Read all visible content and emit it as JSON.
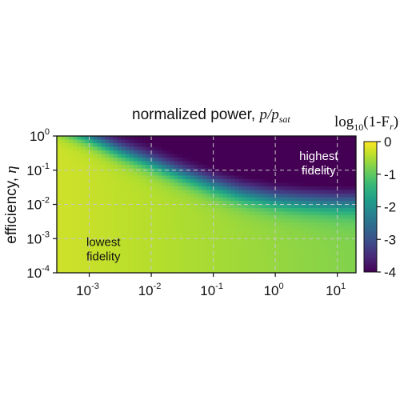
{
  "chart_data": {
    "type": "heatmap",
    "title": {
      "text": "normalized power, ",
      "math": "p/p",
      "math_subscript": "sat"
    },
    "ylabel": {
      "text": "efficiency, ",
      "math": "η"
    },
    "x_scale": "log",
    "y_scale": "log",
    "xlim": [
      0.0003,
      20
    ],
    "ylim": [
      0.0001,
      1
    ],
    "x_ticks": [
      {
        "value": 0.001,
        "base": "10",
        "exp": "-3"
      },
      {
        "value": 0.01,
        "base": "10",
        "exp": "-2"
      },
      {
        "value": 0.1,
        "base": "10",
        "exp": "-1"
      },
      {
        "value": 1,
        "base": "10",
        "exp": "0"
      },
      {
        "value": 10,
        "base": "10",
        "exp": "1"
      }
    ],
    "y_ticks": [
      {
        "value": 0.0001,
        "base": "10",
        "exp": "-4"
      },
      {
        "value": 0.001,
        "base": "10",
        "exp": "-3"
      },
      {
        "value": 0.01,
        "base": "10",
        "exp": "-2"
      },
      {
        "value": 0.1,
        "base": "10",
        "exp": "-1"
      },
      {
        "value": 1,
        "base": "10",
        "exp": "0"
      }
    ],
    "grid": true,
    "colormap": "viridis",
    "colorbar": {
      "label_prefix": "log",
      "label_sub": "10",
      "label_rest": "(1-F",
      "label_sub2": "r",
      "label_end": ")",
      "range": [
        -4,
        0
      ],
      "ticks": [
        {
          "value": 0,
          "label": "0"
        },
        {
          "value": -1,
          "label": "-1"
        },
        {
          "value": -2,
          "label": "-2"
        },
        {
          "value": -3,
          "label": "-3"
        },
        {
          "value": -4,
          "label": "-4"
        }
      ],
      "placement": "right"
    },
    "boundary_curve": {
      "description_x": [
        0.0003,
        0.001,
        0.003,
        0.01,
        0.03,
        0.1,
        0.3,
        1,
        3,
        10,
        20
      ],
      "y": [
        2.0,
        0.85,
        0.35,
        0.16,
        0.075,
        0.035,
        0.02,
        0.014,
        0.012,
        0.011,
        0.011
      ]
    },
    "annotations": [
      {
        "id": "high",
        "lines": [
          "highest",
          "fidelity"
        ],
        "color": "#ffffff",
        "x": 5,
        "y": 0.2
      },
      {
        "id": "low",
        "lines": [
          "lowest",
          "fidelity"
        ],
        "color": "#111111",
        "x": 0.0009,
        "y": 0.0006
      }
    ]
  }
}
